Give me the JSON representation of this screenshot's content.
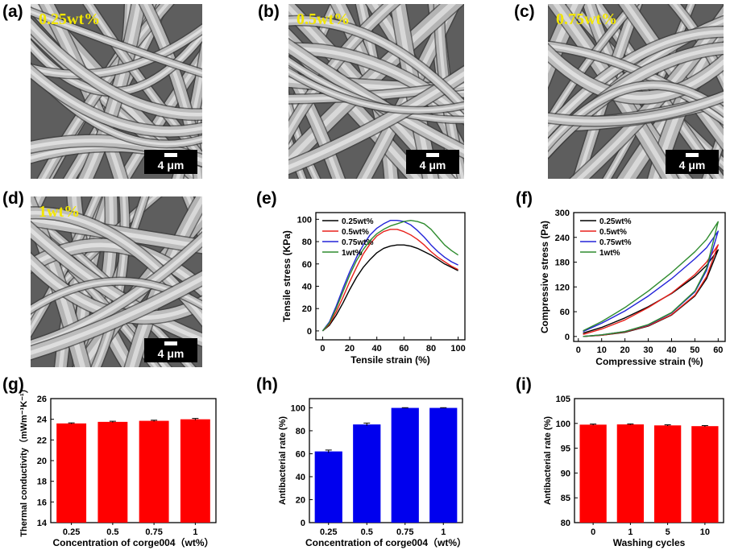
{
  "panels": {
    "a": {
      "label": "(a)",
      "conc": "0.25wt%",
      "scale": "4 μm"
    },
    "b": {
      "label": "(b)",
      "conc": "0.5wt%",
      "scale": "4 μm"
    },
    "c": {
      "label": "(c)",
      "conc": "0.75wt%",
      "scale": "4 μm"
    },
    "d": {
      "label": "(d)",
      "conc": "1wt%",
      "scale": "4 μm"
    },
    "e": {
      "label": "(e)"
    },
    "f": {
      "label": "(f)"
    },
    "g": {
      "label": "(g)"
    },
    "h": {
      "label": "(h)"
    },
    "i": {
      "label": "(i)"
    }
  },
  "colors": {
    "s025": "#000000",
    "s05": "#e8211b",
    "s075": "#2323d8",
    "s1": "#2e8b2e",
    "red_bar": "#ff0000",
    "blue_bar": "#0000ee"
  },
  "chart_data": [
    {
      "id": "e",
      "type": "line",
      "xlabel": "Tensile strain (%)",
      "ylabel": "Tensile stress (KPa)",
      "xlim": [
        -5,
        105
      ],
      "ylim": [
        -8,
        106
      ],
      "xticks": [
        0,
        20,
        40,
        60,
        80,
        100
      ],
      "yticks": [
        0,
        20,
        40,
        60,
        80,
        100
      ],
      "legend": "top-left",
      "series": [
        {
          "name": "0.25wt%",
          "color": "#000000",
          "x": [
            0,
            5,
            10,
            15,
            20,
            25,
            30,
            35,
            40,
            45,
            50,
            55,
            60,
            65,
            70,
            75,
            80,
            85,
            90,
            95,
            100
          ],
          "y": [
            0,
            5,
            14,
            25,
            37,
            48,
            57,
            64,
            70,
            74,
            76,
            77,
            77,
            76,
            74,
            71,
            68,
            64,
            60,
            57,
            54
          ]
        },
        {
          "name": "0.5wt%",
          "color": "#e8211b",
          "x": [
            0,
            5,
            10,
            15,
            20,
            25,
            30,
            35,
            40,
            45,
            50,
            55,
            60,
            65,
            70,
            75,
            80,
            85,
            90,
            95,
            100
          ],
          "y": [
            0,
            6,
            17,
            30,
            44,
            57,
            69,
            78,
            85,
            89,
            91,
            91,
            89,
            86,
            82,
            77,
            71,
            66,
            62,
            58,
            55
          ]
        },
        {
          "name": "0.75wt%",
          "color": "#2323d8",
          "x": [
            0,
            5,
            10,
            15,
            20,
            25,
            30,
            35,
            40,
            45,
            50,
            55,
            60,
            65,
            70,
            75,
            80,
            85,
            90,
            95,
            100
          ],
          "y": [
            0,
            8,
            22,
            38,
            53,
            66,
            77,
            86,
            92,
            96,
            99,
            99,
            98,
            95,
            90,
            84,
            77,
            71,
            66,
            62,
            59
          ]
        },
        {
          "name": "1wt%",
          "color": "#2e8b2e",
          "x": [
            0,
            5,
            10,
            15,
            20,
            25,
            30,
            35,
            40,
            45,
            50,
            55,
            60,
            65,
            70,
            75,
            80,
            85,
            90,
            95,
            100
          ],
          "y": [
            0,
            7,
            20,
            35,
            50,
            63,
            73,
            81,
            87,
            91,
            94,
            96,
            98,
            99,
            98,
            96,
            91,
            84,
            77,
            72,
            68
          ]
        }
      ]
    },
    {
      "id": "f",
      "type": "line",
      "xlabel": "Compressive strain (%)",
      "ylabel": "Compressive stress (Pa)",
      "xlim": [
        -2,
        63
      ],
      "ylim": [
        -12,
        300
      ],
      "xticks": [
        0,
        10,
        20,
        30,
        40,
        50,
        60
      ],
      "yticks": [
        0,
        60,
        120,
        180,
        240,
        300
      ],
      "legend": "top-left",
      "series": [
        {
          "name": "0.25wt%",
          "color": "#000000",
          "x": [
            2,
            10,
            20,
            30,
            40,
            50,
            55,
            60,
            55,
            50,
            40,
            30,
            20,
            10,
            2
          ],
          "y": [
            8,
            22,
            45,
            72,
            104,
            145,
            172,
            210,
            140,
            98,
            52,
            25,
            10,
            3,
            0
          ]
        },
        {
          "name": "0.5wt%",
          "color": "#e8211b",
          "x": [
            2,
            10,
            20,
            30,
            40,
            50,
            55,
            60,
            55,
            50,
            40,
            30,
            20,
            10,
            2
          ],
          "y": [
            5,
            18,
            40,
            70,
            105,
            150,
            180,
            222,
            145,
            100,
            53,
            26,
            11,
            3,
            0
          ]
        },
        {
          "name": "0.75wt%",
          "color": "#2323d8",
          "x": [
            2,
            10,
            20,
            30,
            40,
            50,
            55,
            60,
            55,
            50,
            40,
            30,
            20,
            10,
            2
          ],
          "y": [
            12,
            32,
            62,
            98,
            140,
            188,
            215,
            255,
            160,
            108,
            57,
            28,
            12,
            4,
            0
          ]
        },
        {
          "name": "1wt%",
          "color": "#2e8b2e",
          "x": [
            2,
            10,
            20,
            30,
            40,
            50,
            55,
            60,
            55,
            50,
            40,
            30,
            20,
            10,
            2
          ],
          "y": [
            14,
            36,
            70,
            110,
            155,
            205,
            235,
            278,
            165,
            110,
            58,
            29,
            12,
            4,
            0
          ]
        }
      ]
    },
    {
      "id": "g",
      "type": "bar",
      "xlabel": "Concentration of corge004（wt%）",
      "ylabel": "Thermal conductivity（mWm⁻¹K⁻¹）",
      "categories": [
        "0.25",
        "0.5",
        "0.75",
        "1"
      ],
      "values": [
        23.6,
        23.75,
        23.85,
        24.0
      ],
      "errors": [
        0.05,
        0.06,
        0.06,
        0.08
      ],
      "ylim": [
        14,
        26
      ],
      "yticks": [
        14,
        16,
        18,
        20,
        22,
        24,
        26
      ],
      "color": "#ff0000"
    },
    {
      "id": "h",
      "type": "bar",
      "xlabel": "Concentration of corge004（wt%）",
      "ylabel": "Antibacterial rate (%)",
      "categories": [
        "0.25",
        "0.5",
        "0.75",
        "1"
      ],
      "values": [
        62,
        85.5,
        99.9,
        99.9
      ],
      "errors": [
        1.2,
        1.2,
        0.2,
        0.2
      ],
      "ylim": [
        0,
        108
      ],
      "yticks": [
        0,
        20,
        40,
        60,
        80,
        100
      ],
      "color": "#0000ee"
    },
    {
      "id": "i",
      "type": "bar",
      "xlabel": "Washing cycles",
      "ylabel": "Antibacterial rate (%)",
      "categories": [
        "0",
        "1",
        "5",
        "10"
      ],
      "values": [
        99.75,
        99.8,
        99.6,
        99.45
      ],
      "errors": [
        0.12,
        0.1,
        0.12,
        0.12
      ],
      "ylim": [
        80,
        105
      ],
      "yticks": [
        80,
        85,
        90,
        95,
        100,
        105
      ],
      "color": "#ff0000"
    }
  ]
}
